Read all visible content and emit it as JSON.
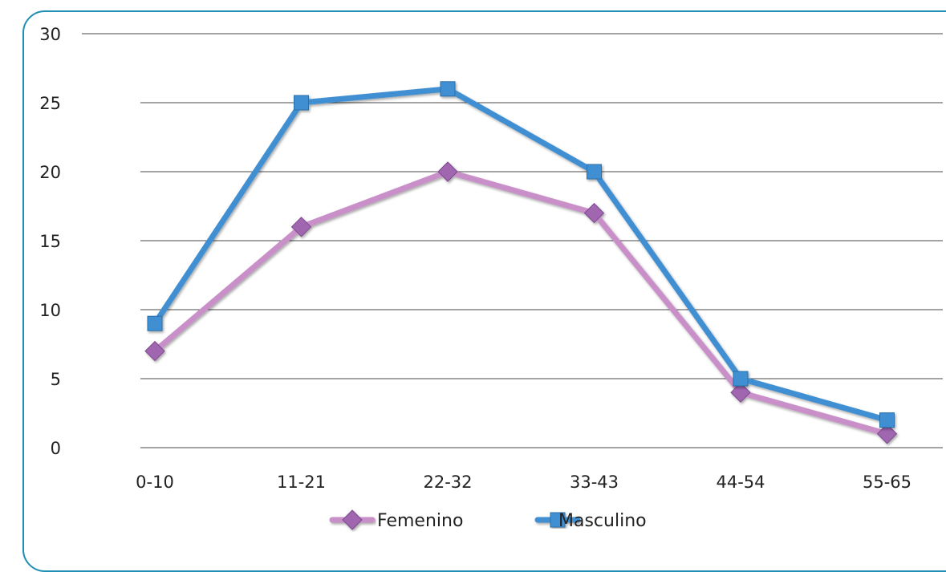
{
  "chart_data": {
    "type": "line",
    "title": "",
    "xlabel": "",
    "ylabel": "",
    "categories": [
      "0-10",
      "11-21",
      "22-32",
      "33-43",
      "44-54",
      "55-65"
    ],
    "ylim": [
      0,
      30
    ],
    "yticks": [
      0,
      5,
      10,
      15,
      20,
      25,
      30
    ],
    "grid": true,
    "legend_position": "bottom",
    "series": [
      {
        "name": "Femenino",
        "values": [
          7,
          16,
          20,
          17,
          4,
          1
        ],
        "color": "#c98fc9",
        "marker_color": "#a066b0",
        "marker": "diamond"
      },
      {
        "name": "Masculino",
        "values": [
          9,
          25,
          26,
          20,
          5,
          2
        ],
        "color": "#3f8fd2",
        "marker_color": "#3f8fd2",
        "marker": "square"
      }
    ]
  },
  "frame_color": "#1f8fb5"
}
